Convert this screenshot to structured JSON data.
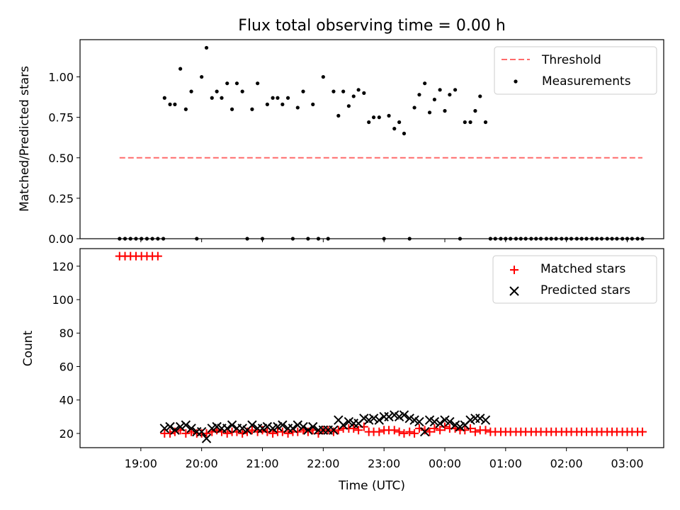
{
  "chart_data": [
    {
      "type": "scatter",
      "title": "Flux total observing time = 0.00 h",
      "ylabel": "Matched/Predicted stars",
      "xlabel": "",
      "ylim": [
        0,
        1.23
      ],
      "yticks": [
        0.0,
        0.25,
        0.5,
        0.75,
        1.0
      ],
      "ytick_labels": [
        "0.00",
        "0.25",
        "0.50",
        "0.75",
        "1.00"
      ],
      "grid": false,
      "legend_position": "top-right",
      "series": [
        {
          "name": "Threshold",
          "style": "dashed-line",
          "color": "#ff6b6b",
          "x": [
            18.65,
            27.25
          ],
          "values": [
            0.5,
            0.5
          ]
        },
        {
          "name": "Measurements",
          "style": "dot",
          "color": "#000000",
          "x": [
            18.65,
            18.74,
            18.83,
            18.92,
            19.01,
            19.1,
            19.19,
            19.28,
            19.37,
            19.39,
            19.48,
            19.56,
            19.65,
            19.74,
            19.83,
            19.92,
            20.0,
            20.08,
            20.17,
            20.25,
            20.33,
            20.42,
            20.5,
            20.58,
            20.67,
            20.75,
            20.83,
            20.92,
            21.0,
            21.08,
            21.17,
            21.25,
            21.33,
            21.42,
            21.5,
            21.58,
            21.67,
            21.75,
            21.83,
            21.92,
            22.0,
            22.08,
            22.17,
            22.25,
            22.33,
            22.42,
            22.5,
            22.58,
            22.67,
            22.75,
            22.83,
            22.92,
            23.0,
            23.08,
            23.17,
            23.25,
            23.33,
            23.42,
            23.5,
            23.58,
            23.67,
            23.75,
            23.83,
            23.92,
            24.0,
            24.08,
            24.17,
            24.25,
            24.33,
            24.42,
            24.5,
            24.58,
            24.67,
            24.75,
            24.83,
            24.92,
            25.0,
            25.08,
            25.17,
            25.25,
            25.33,
            25.42,
            25.5,
            25.58,
            25.67,
            25.75,
            25.83,
            25.92,
            26.0,
            26.08,
            26.17,
            26.25,
            26.33,
            26.42,
            26.5,
            26.58,
            26.67,
            26.75,
            26.83,
            26.92,
            27.0,
            27.08,
            27.17,
            27.25
          ],
          "values": [
            0.0,
            0.0,
            0.0,
            0.0,
            0.0,
            0.0,
            0.0,
            0.0,
            0.0,
            0.87,
            0.83,
            0.83,
            1.05,
            0.8,
            0.91,
            0.0,
            1.0,
            1.18,
            0.87,
            0.91,
            0.87,
            0.96,
            0.8,
            0.96,
            0.91,
            0.0,
            0.8,
            0.96,
            0.0,
            0.83,
            0.87,
            0.87,
            0.83,
            0.87,
            0.0,
            0.81,
            0.91,
            0.0,
            0.83,
            0.0,
            1.0,
            0.0,
            0.91,
            0.76,
            0.91,
            0.82,
            0.88,
            0.92,
            0.9,
            0.72,
            0.75,
            0.75,
            0.0,
            0.76,
            0.68,
            0.72,
            0.65,
            0.0,
            0.81,
            0.89,
            0.96,
            0.78,
            0.86,
            0.92,
            0.79,
            0.89,
            0.92,
            0.0,
            0.72,
            0.72,
            0.79,
            0.88,
            0.72,
            0.0,
            0.0,
            0.0,
            0.0,
            0.0,
            0.0,
            0.0,
            0.0,
            0.0,
            0.0,
            0.0,
            0.0,
            0.0,
            0.0,
            0.0,
            0.0,
            0.0,
            0.0,
            0.0,
            0.0,
            0.0,
            0.0,
            0.0,
            0.0,
            0.0,
            0.0,
            0.0,
            0.0,
            0.0,
            0.0,
            0.0
          ]
        }
      ]
    },
    {
      "type": "scatter",
      "title": "",
      "xlabel": "Time (UTC)",
      "ylabel": "Count",
      "xlim": [
        18.0,
        27.6
      ],
      "ylim": [
        11.5,
        130.5
      ],
      "xticks": [
        19,
        20,
        21,
        22,
        23,
        24,
        25,
        26,
        27
      ],
      "xtick_labels": [
        "19:00",
        "20:00",
        "21:00",
        "22:00",
        "23:00",
        "00:00",
        "01:00",
        "02:00",
        "03:00"
      ],
      "yticks": [
        20,
        40,
        60,
        80,
        100,
        120
      ],
      "ytick_labels": [
        "20",
        "40",
        "60",
        "80",
        "100",
        "120"
      ],
      "grid": false,
      "legend_position": "top-right",
      "series": [
        {
          "name": "Matched stars",
          "style": "plus",
          "color": "#ff0000",
          "x": [
            18.65,
            18.74,
            18.83,
            18.92,
            19.01,
            19.1,
            19.19,
            19.28,
            19.39,
            19.48,
            19.56,
            19.65,
            19.74,
            19.83,
            19.92,
            20.0,
            20.08,
            20.17,
            20.25,
            20.33,
            20.42,
            20.5,
            20.58,
            20.67,
            20.75,
            20.83,
            20.92,
            21.0,
            21.08,
            21.17,
            21.25,
            21.33,
            21.42,
            21.5,
            21.58,
            21.67,
            21.75,
            21.83,
            21.92,
            22.0,
            22.08,
            22.17,
            22.25,
            22.33,
            22.42,
            22.5,
            22.58,
            22.67,
            22.75,
            22.83,
            22.92,
            23.0,
            23.08,
            23.17,
            23.25,
            23.33,
            23.42,
            23.5,
            23.58,
            23.67,
            23.75,
            23.83,
            23.92,
            24.0,
            24.08,
            24.17,
            24.25,
            24.33,
            24.42,
            24.5,
            24.58,
            24.67,
            24.75,
            24.83,
            24.92,
            25.0,
            25.08,
            25.17,
            25.25,
            25.33,
            25.42,
            25.5,
            25.58,
            25.67,
            25.75,
            25.83,
            25.92,
            26.0,
            26.08,
            26.17,
            26.25,
            26.33,
            26.42,
            26.5,
            26.58,
            26.67,
            26.75,
            26.83,
            26.92,
            27.0,
            27.08,
            27.17,
            27.25
          ],
          "values": [
            126,
            126,
            126,
            126,
            126,
            126,
            126,
            126,
            20,
            20,
            21,
            22,
            20,
            21,
            20,
            20,
            20,
            21,
            22,
            21,
            20,
            21,
            21,
            20,
            21,
            22,
            21,
            22,
            21,
            20,
            21,
            21,
            20,
            21,
            21,
            22,
            21,
            22,
            20,
            22,
            22,
            21,
            22,
            23,
            23,
            23,
            22,
            24,
            21,
            21,
            21,
            22,
            22,
            22,
            21,
            20,
            21,
            20,
            23,
            22,
            21,
            23,
            22,
            24,
            23,
            23,
            22,
            22,
            23,
            21,
            22,
            22,
            21,
            21,
            21,
            21,
            21,
            21,
            21,
            21,
            21,
            21,
            21,
            21,
            21,
            21,
            21,
            21,
            21,
            21,
            21,
            21,
            21,
            21,
            21,
            21,
            21,
            21,
            21,
            21,
            21,
            21,
            21
          ]
        },
        {
          "name": "Predicted stars",
          "style": "x",
          "color": "#000000",
          "x": [
            19.39,
            19.48,
            19.56,
            19.65,
            19.74,
            19.83,
            19.92,
            20.0,
            20.08,
            20.17,
            20.25,
            20.33,
            20.42,
            20.5,
            20.58,
            20.67,
            20.75,
            20.83,
            20.92,
            21.0,
            21.08,
            21.17,
            21.25,
            21.33,
            21.42,
            21.5,
            21.58,
            21.67,
            21.75,
            21.83,
            21.92,
            22.0,
            22.08,
            22.17,
            22.25,
            22.33,
            22.42,
            22.5,
            22.58,
            22.67,
            22.75,
            22.83,
            22.92,
            23.0,
            23.08,
            23.17,
            23.25,
            23.33,
            23.42,
            23.5,
            23.58,
            23.67,
            23.75,
            23.83,
            23.92,
            24.0,
            24.08,
            24.17,
            24.25,
            24.33,
            24.42,
            24.5,
            24.58,
            24.67
          ],
          "values": [
            23,
            24,
            22,
            24,
            25,
            23,
            21,
            21,
            17,
            23,
            24,
            23,
            23,
            25,
            23,
            23,
            22,
            25,
            23,
            23,
            24,
            23,
            24,
            25,
            23,
            23,
            25,
            24,
            22,
            24,
            22,
            22,
            22,
            22,
            28,
            25,
            27,
            26,
            26,
            29,
            28,
            29,
            28,
            30,
            30,
            31,
            30,
            31,
            29,
            28,
            27,
            21,
            28,
            27,
            26,
            28,
            27,
            25,
            24,
            25,
            28,
            29,
            29,
            28
          ]
        }
      ]
    }
  ]
}
